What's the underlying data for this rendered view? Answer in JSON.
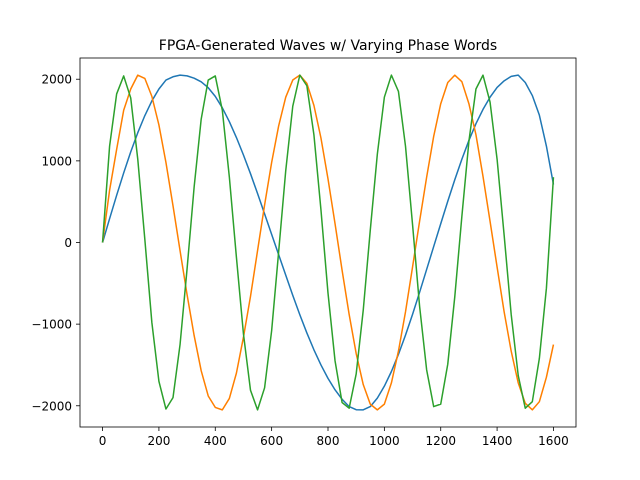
{
  "chart_data": {
    "type": "line",
    "title": "FPGA-Generated Waves w/ Varying Phase Words",
    "xlabel": "",
    "ylabel": "",
    "xlim": [
      -80,
      1680
    ],
    "ylim": [
      -2260,
      2260
    ],
    "xticks": [
      0,
      200,
      400,
      600,
      800,
      1000,
      1200,
      1400,
      1600
    ],
    "yticks": [
      -2000,
      -1000,
      0,
      1000,
      2000
    ],
    "grid": false,
    "legend": "none",
    "x": [
      0,
      25,
      50,
      75,
      100,
      125,
      150,
      175,
      200,
      225,
      250,
      275,
      300,
      325,
      350,
      375,
      400,
      425,
      450,
      475,
      500,
      525,
      550,
      575,
      600,
      625,
      650,
      675,
      700,
      725,
      750,
      775,
      800,
      825,
      850,
      875,
      900,
      925,
      950,
      975,
      1000,
      1025,
      1050,
      1075,
      1100,
      1125,
      1150,
      1175,
      1200,
      1225,
      1250,
      1275,
      1300,
      1325,
      1350,
      1375,
      1400,
      1425,
      1450,
      1475,
      1500,
      1525,
      1550,
      1575,
      1600
    ],
    "series": [
      {
        "color": "#1f77b4",
        "values": [
          0,
          292,
          578,
          852,
          1110,
          1345,
          1554,
          1734,
          1880,
          1990,
          2030,
          2050,
          2041,
          2013,
          1968,
          1896,
          1790,
          1650,
          1480,
          1286,
          1072,
          843,
          600,
          350,
          100,
          -150,
          -400,
          -648,
          -885,
          -1108,
          -1314,
          -1500,
          -1664,
          -1805,
          -1920,
          -2010,
          -2048,
          -2050,
          -2010,
          -1906,
          -1760,
          -1580,
          -1370,
          -1135,
          -880,
          -610,
          -330,
          -50,
          230,
          505,
          770,
          1020,
          1250,
          1455,
          1630,
          1780,
          1900,
          1980,
          2035,
          2050,
          1960,
          1800,
          1560,
          1180,
          710
        ]
      },
      {
        "color": "#ff7f00",
        "values": [
          0,
          640,
          1140,
          1620,
          1880,
          2050,
          2010,
          1790,
          1440,
          980,
          450,
          -100,
          -640,
          -1140,
          -1570,
          -1880,
          -2020,
          -2050,
          -1910,
          -1600,
          -1160,
          -660,
          -100,
          460,
          980,
          1430,
          1780,
          1990,
          2050,
          1950,
          1680,
          1280,
          780,
          230,
          -340,
          -880,
          -1360,
          -1740,
          -1980,
          -2050,
          -1980,
          -1720,
          -1330,
          -850,
          -300,
          260,
          800,
          1300,
          1700,
          1960,
          2050,
          1970,
          1700,
          1320,
          810,
          260,
          -300,
          -850,
          -1330,
          -1720,
          -1970,
          -2050,
          -1950,
          -1650,
          -1250
        ]
      },
      {
        "color": "#2ca02c",
        "values": [
          0,
          1180,
          1820,
          2040,
          1770,
          1020,
          40,
          -980,
          -1700,
          -2040,
          -1900,
          -1250,
          -320,
          680,
          1510,
          1990,
          2040,
          1620,
          800,
          -180,
          -1120,
          -1810,
          -2050,
          -1780,
          -1080,
          -110,
          880,
          1670,
          2050,
          1920,
          1320,
          400,
          -620,
          -1450,
          -1960,
          -2030,
          -1610,
          -830,
          150,
          1080,
          1780,
          2050,
          1850,
          1180,
          220,
          -780,
          -1560,
          -2010,
          -1980,
          -1490,
          -660,
          320,
          1240,
          1880,
          2050,
          1720,
          1020,
          90,
          -880,
          -1630,
          -2030,
          -1950,
          -1420,
          -560,
          800
        ]
      }
    ]
  }
}
